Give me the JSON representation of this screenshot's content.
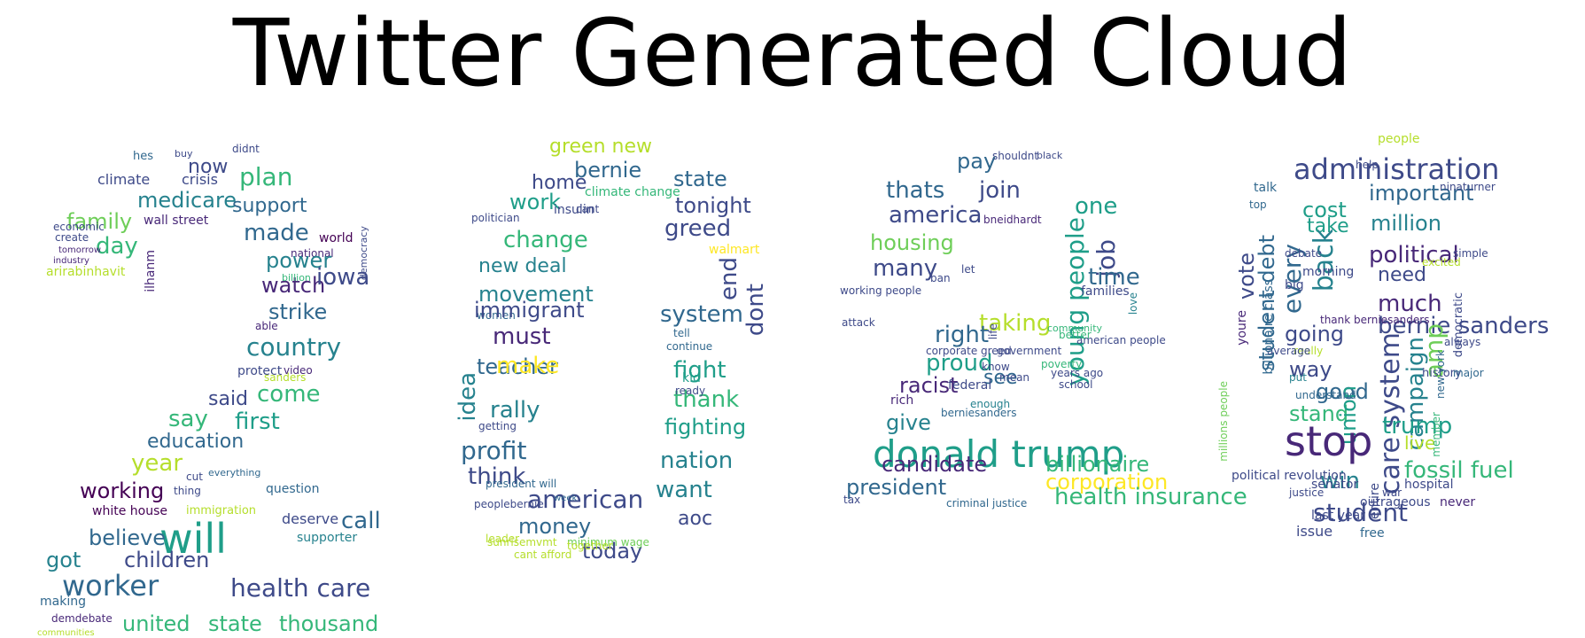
{
  "title": "Twitter Generated Cloud",
  "palette": [
    "#440154",
    "#482878",
    "#3e4a89",
    "#31688e",
    "#26828e",
    "#1f9e89",
    "#35b779",
    "#6ece58",
    "#b5de2b",
    "#fde725"
  ],
  "words": [
    "hes",
    "buy",
    "didnt",
    "now",
    "plan",
    "climate",
    "crisis",
    "medicare",
    "support",
    "family",
    "wall street",
    "day",
    "made",
    "world",
    "national",
    "power",
    "create",
    "economic",
    "tomorrow",
    "industry",
    "watch",
    "iowa",
    "arirabinhavit",
    "ilhanm",
    "billion",
    "democracy",
    "strike",
    "able",
    "country",
    "protect",
    "video",
    "come",
    "said",
    "sanders",
    "say",
    "first",
    "education",
    "year",
    "cut",
    "everything",
    "question",
    "working",
    "thing",
    "white house",
    "immigration",
    "call",
    "will",
    "believe",
    "deserve",
    "got",
    "children",
    "supporter",
    "worker",
    "health care",
    "making",
    "demdebate",
    "united",
    "state",
    "thousand",
    "communities",
    "green new",
    "bernie",
    "state",
    "home",
    "work",
    "climate change",
    "insulin",
    "cant",
    "tonight",
    "politician",
    "change",
    "greed",
    "new deal",
    "walmart",
    "movement",
    "women",
    "end",
    "immigrant",
    "system",
    "must",
    "dont",
    "teacher",
    "idea",
    "make",
    "fight",
    "thank",
    "rally",
    "fighting",
    "getting",
    "profit",
    "nation",
    "think",
    "want",
    "american",
    "money",
    "aoc",
    "today",
    "minimum wage",
    "cant afford",
    "sunrisemvmt",
    "together",
    "president will",
    "peoplebernie",
    "week",
    "leader",
    "kid",
    "ready",
    "continue",
    "tell",
    "pay",
    "shouldnt",
    "black",
    "thats",
    "join",
    "one",
    "america",
    "young people",
    "job",
    "housing",
    "many",
    "time",
    "bneidhardt",
    "working people",
    "let",
    "ban",
    "families",
    "love",
    "taking",
    "right",
    "american people",
    "proud",
    "corporate greed",
    "government",
    "see",
    "know",
    "racist",
    "federal",
    "rich",
    "mean",
    "give",
    "enough",
    "berniesanders",
    "donald trump",
    "candidate",
    "billionaire",
    "president",
    "corporation",
    "health insurance",
    "tax",
    "criminal justice",
    "life",
    "years ago",
    "school",
    "poverty",
    "better",
    "attack",
    "community",
    "people",
    "administration",
    "help",
    "talk",
    "important",
    "top",
    "ninaturner",
    "cost",
    "take",
    "million",
    "back",
    "every",
    "political",
    "need",
    "much",
    "bernie sanders",
    "student debt",
    "vote",
    "going",
    "care system",
    "campaign",
    "amp",
    "way",
    "good",
    "stand",
    "union",
    "trump",
    "stop",
    "live",
    "win",
    "fossil fuel",
    "student",
    "senator",
    "justice",
    "hospital",
    "political revolution",
    "last year",
    "issue",
    "free",
    "never",
    "entire",
    "war",
    "youre",
    "big",
    "morning",
    "debate",
    "history",
    "new york",
    "always",
    "really",
    "average",
    "understand",
    "put",
    "millions people",
    "billionaire class",
    "thank berniesanders",
    "outrageous",
    "simple",
    "democratic",
    "member",
    "major",
    "excited"
  ]
}
